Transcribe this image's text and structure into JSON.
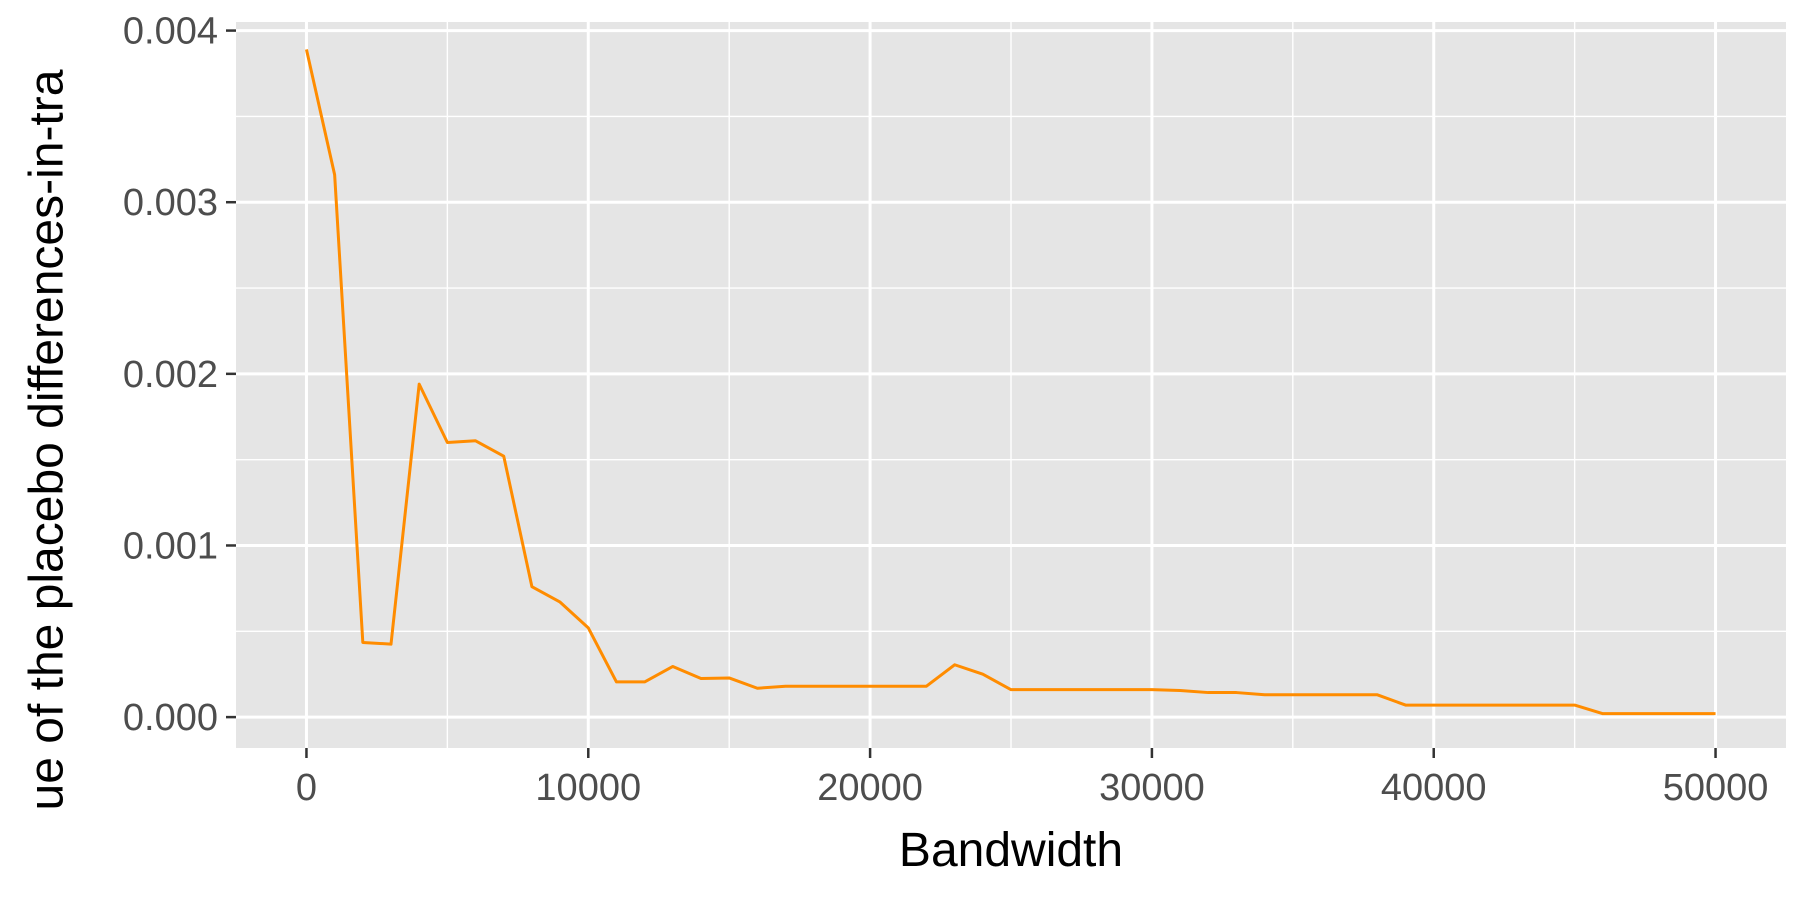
{
  "chart_data": {
    "type": "line",
    "title": "",
    "xlabel": "Bandwidth",
    "ylabel": "ue of the placebo differences-in-tra",
    "xlim": [
      -2500,
      52500
    ],
    "ylim": [
      -0.00018,
      0.00405
    ],
    "x_ticks": [
      0,
      10000,
      20000,
      30000,
      40000,
      50000
    ],
    "x_tick_labels": [
      "0",
      "10000",
      "20000",
      "30000",
      "40000",
      "50000"
    ],
    "y_ticks": [
      0.0,
      0.001,
      0.002,
      0.003,
      0.004
    ],
    "y_tick_labels": [
      "0.000",
      "0.001",
      "0.002",
      "0.003",
      "0.004"
    ],
    "grid": true,
    "legend": "none",
    "colors": {
      "line": "#ff8c00",
      "panel": "#e5e5e5",
      "grid": "#ffffff",
      "tick": "#333333"
    },
    "series": [
      {
        "x": [
          0,
          1000,
          2000,
          3000,
          4000,
          5000,
          6000,
          7000,
          8000,
          9000,
          10000,
          11000,
          12000,
          13000,
          14000,
          15000,
          16000,
          17000,
          18000,
          19000,
          20000,
          21000,
          22000,
          23000,
          24000,
          25000,
          26000,
          27000,
          28000,
          29000,
          30000,
          31000,
          32000,
          33000,
          34000,
          35000,
          36000,
          37000,
          38000,
          39000,
          40000,
          41000,
          42000,
          43000,
          44000,
          45000,
          46000,
          47000,
          48000,
          49000,
          50000
        ],
        "y": [
          0.00389,
          0.00316,
          0.000435,
          0.000425,
          0.00194,
          0.0016,
          0.00161,
          0.00152,
          0.00076,
          0.00067,
          0.00052,
          0.000205,
          0.000205,
          0.000295,
          0.000225,
          0.000228,
          0.000168,
          0.00018,
          0.00018,
          0.00018,
          0.00018,
          0.00018,
          0.00018,
          0.000305,
          0.00025,
          0.00016,
          0.00016,
          0.00016,
          0.00016,
          0.00016,
          0.00016,
          0.000155,
          0.000143,
          0.000143,
          0.00013,
          0.00013,
          0.00013,
          0.00013,
          0.00013,
          7e-05,
          7e-05,
          7e-05,
          7e-05,
          7e-05,
          7e-05,
          7e-05,
          2e-05,
          2e-05,
          2e-05,
          2e-05,
          2e-05
        ]
      }
    ]
  }
}
